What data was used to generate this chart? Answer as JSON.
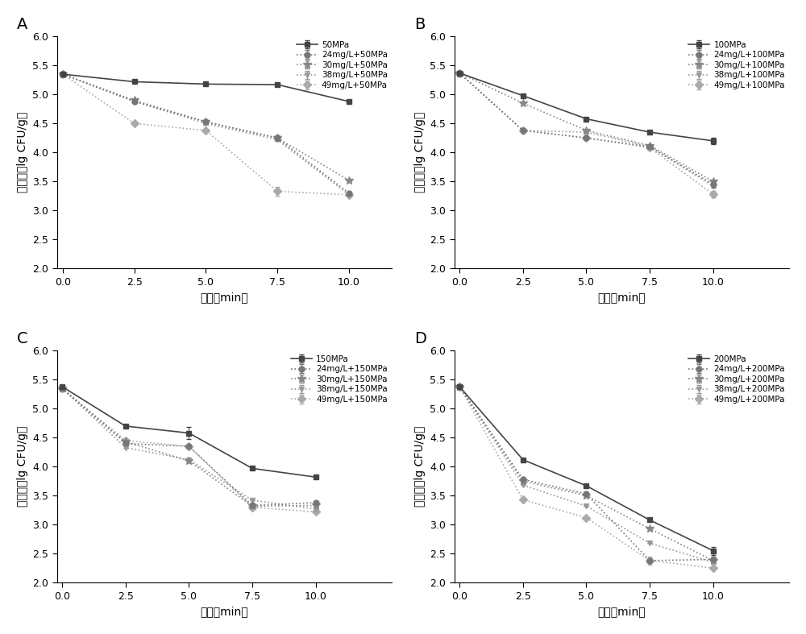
{
  "subplots": {
    "A": {
      "label": "A",
      "legend_labels": [
        "50MPa",
        "24mg/L+50MPa",
        "30mg/L+50MPa",
        "38mg/L+50MPa",
        "49mg/L+50MPa"
      ],
      "x": [
        0,
        2.5,
        5.0,
        7.5,
        10.0
      ],
      "series": [
        [
          5.35,
          5.22,
          5.18,
          5.17,
          4.88
        ],
        [
          5.35,
          4.88,
          4.53,
          4.25,
          3.3
        ],
        [
          5.35,
          4.9,
          4.53,
          4.25,
          3.52
        ],
        [
          5.35,
          4.88,
          4.5,
          4.22,
          3.27
        ],
        [
          5.35,
          4.5,
          4.38,
          3.33,
          3.27
        ]
      ],
      "error": [
        [
          0.0,
          0.0,
          0.0,
          0.0,
          0.0
        ],
        [
          0.0,
          0.0,
          0.0,
          0.0,
          0.0
        ],
        [
          0.0,
          0.0,
          0.0,
          0.05,
          0.0
        ],
        [
          0.0,
          0.0,
          0.0,
          0.0,
          0.0
        ],
        [
          0.0,
          0.0,
          0.0,
          0.07,
          0.0
        ]
      ],
      "ylim": [
        2.0,
        6.0
      ],
      "yticks": [
        2.0,
        2.5,
        3.0,
        3.5,
        4.0,
        4.5,
        5.0,
        5.5,
        6.0
      ],
      "xlim": [
        -0.2,
        11.5
      ],
      "xticks": [
        0.0,
        2.5,
        5.0,
        7.5,
        10.0
      ]
    },
    "B": {
      "label": "B",
      "legend_labels": [
        "100MPa",
        "24mg/L+100MPa",
        "30mg/L+100MPa",
        "38mg/L+100MPa",
        "49mg/L+100MPa"
      ],
      "x": [
        0,
        2.5,
        5.0,
        7.5,
        10.0
      ],
      "series": [
        [
          5.37,
          4.98,
          4.58,
          4.35,
          4.2
        ],
        [
          5.37,
          4.38,
          4.25,
          4.1,
          3.45
        ],
        [
          5.37,
          4.85,
          4.38,
          4.12,
          3.5
        ],
        [
          5.37,
          4.38,
          4.35,
          4.1,
          3.42
        ],
        [
          5.37,
          4.38,
          4.25,
          4.08,
          3.28
        ]
      ],
      "error": [
        [
          0.0,
          0.0,
          0.0,
          0.0,
          0.06
        ],
        [
          0.0,
          0.0,
          0.0,
          0.0,
          0.06
        ],
        [
          0.0,
          0.0,
          0.0,
          0.0,
          0.0
        ],
        [
          0.0,
          0.0,
          0.0,
          0.0,
          0.0
        ],
        [
          0.0,
          0.0,
          0.0,
          0.0,
          0.06
        ]
      ],
      "ylim": [
        2.0,
        6.0
      ],
      "yticks": [
        2.0,
        2.5,
        3.0,
        3.5,
        4.0,
        4.5,
        5.0,
        5.5,
        6.0
      ],
      "xlim": [
        -0.2,
        13.0
      ],
      "xticks": [
        0.0,
        2.5,
        5.0,
        7.5,
        10.0
      ]
    },
    "C": {
      "label": "C",
      "legend_labels": [
        "150MPa",
        "24mg/L+150MPa",
        "30mg/L+150MPa",
        "38mg/L+150MPa",
        "49mg/L+150MPa"
      ],
      "x": [
        0,
        2.5,
        5.0,
        7.5,
        10.0
      ],
      "series": [
        [
          5.38,
          4.7,
          4.58,
          3.97,
          3.82
        ],
        [
          5.35,
          4.4,
          4.35,
          3.33,
          3.38
        ],
        [
          5.35,
          4.43,
          4.1,
          3.32,
          3.33
        ],
        [
          5.35,
          4.33,
          4.12,
          3.42,
          3.27
        ],
        [
          5.35,
          4.45,
          4.35,
          3.3,
          3.22
        ]
      ],
      "error": [
        [
          0.0,
          0.0,
          0.1,
          0.0,
          0.0
        ],
        [
          0.0,
          0.0,
          0.0,
          0.0,
          0.0
        ],
        [
          0.0,
          0.0,
          0.0,
          0.0,
          0.0
        ],
        [
          0.0,
          0.0,
          0.0,
          0.0,
          0.0
        ],
        [
          0.0,
          0.0,
          0.0,
          0.0,
          0.0
        ]
      ],
      "ylim": [
        2.0,
        6.0
      ],
      "yticks": [
        2.0,
        2.5,
        3.0,
        3.5,
        4.0,
        4.5,
        5.0,
        5.5,
        6.0
      ],
      "xlim": [
        -0.2,
        13.0
      ],
      "xticks": [
        0.0,
        2.5,
        5.0,
        7.5,
        10.0
      ]
    },
    "D": {
      "label": "D",
      "legend_labels": [
        "200MPa",
        "24mg/L+200MPa",
        "30mg/L+200MPa",
        "38mg/L+200MPa",
        "49mg/L+200MPa"
      ],
      "x": [
        0,
        2.5,
        5.0,
        7.5,
        10.0
      ],
      "series": [
        [
          5.38,
          4.12,
          3.67,
          3.08,
          2.55
        ],
        [
          5.38,
          3.78,
          3.53,
          2.38,
          2.4
        ],
        [
          5.38,
          3.75,
          3.5,
          2.93,
          2.38
        ],
        [
          5.38,
          3.68,
          3.32,
          2.68,
          2.35
        ],
        [
          5.38,
          3.43,
          3.12,
          2.38,
          2.25
        ]
      ],
      "error": [
        [
          0.0,
          0.0,
          0.0,
          0.0,
          0.07
        ],
        [
          0.0,
          0.0,
          0.0,
          0.0,
          0.0
        ],
        [
          0.0,
          0.0,
          0.0,
          0.0,
          0.0
        ],
        [
          0.0,
          0.0,
          0.0,
          0.0,
          0.0
        ],
        [
          0.0,
          0.0,
          0.0,
          0.07,
          0.0
        ]
      ],
      "ylim": [
        2.0,
        6.0
      ],
      "yticks": [
        2.0,
        2.5,
        3.0,
        3.5,
        4.0,
        4.5,
        5.0,
        5.5,
        6.0
      ],
      "xlim": [
        -0.2,
        13.0
      ],
      "xticks": [
        0.0,
        2.5,
        5.0,
        7.5,
        10.0
      ]
    }
  },
  "markers": [
    "s",
    "o",
    "*",
    "v",
    "D"
  ],
  "marker_sizes": [
    5,
    5,
    7,
    5,
    5
  ],
  "linestyles_first": "-",
  "linestyles_rest": ":",
  "colors": [
    "#444444",
    "#777777",
    "#888888",
    "#999999",
    "#aaaaaa"
  ],
  "ylabel": "活菌数（lg CFU/g）",
  "xlabel": "时间（min）",
  "linewidth": 1.2,
  "legend_fontsize": 7.5,
  "axis_fontsize": 10,
  "label_fontsize": 14,
  "tick_fontsize": 9
}
